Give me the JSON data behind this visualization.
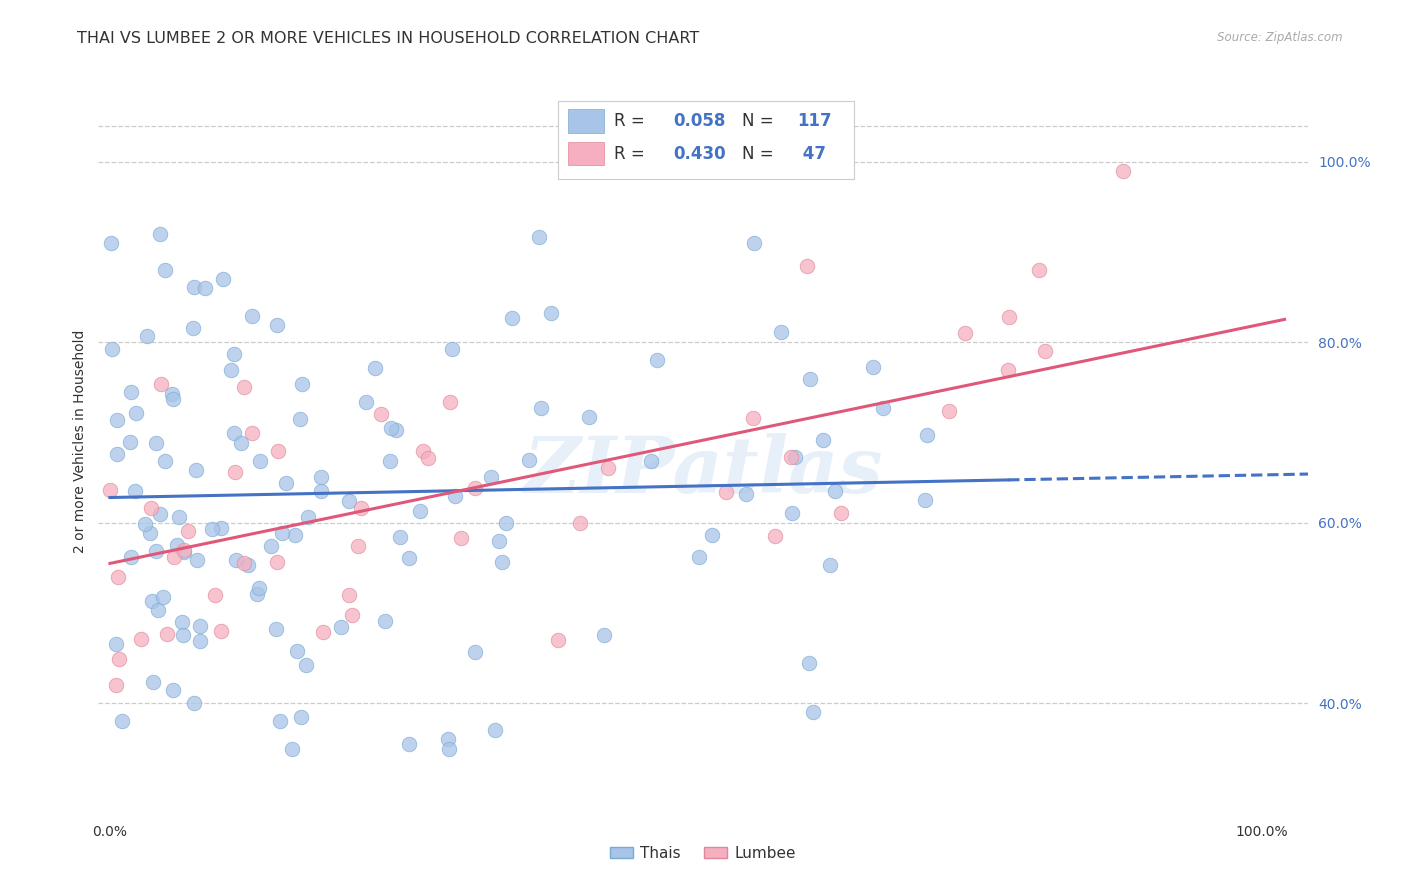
{
  "title": "THAI VS LUMBEE 2 OR MORE VEHICLES IN HOUSEHOLD CORRELATION CHART",
  "source": "Source: ZipAtlas.com",
  "ylabel": "2 or more Vehicles in Household",
  "watermark": "ZIPatlas",
  "thai_R": 0.058,
  "thai_N": 117,
  "lumbee_R": 0.43,
  "lumbee_N": 47,
  "thai_color": "#a8c4e8",
  "lumbee_color": "#f5afc0",
  "thai_line_color": "#4472c4",
  "lumbee_line_color": "#e05878",
  "background_color": "#ffffff",
  "grid_color": "#cccccc",
  "title_fontsize": 11.5,
  "axis_label_fontsize": 10,
  "tick_fontsize": 10,
  "legend_fontsize": 12,
  "right_tick_color": "#4472c4"
}
